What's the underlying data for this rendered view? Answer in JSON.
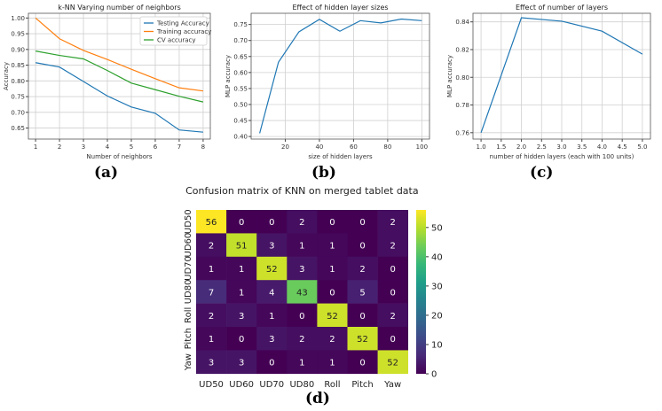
{
  "chart_data": [
    {
      "type": "line",
      "title": "k-NN Varying number of neighbors",
      "xlabel": "Number of neighbors",
      "ylabel": "Accuracy",
      "x": [
        1,
        2,
        3,
        4,
        5,
        6,
        7,
        8
      ],
      "xlim": [
        0.7,
        8.3
      ],
      "ylim": [
        0.615,
        1.015
      ],
      "xticks": [
        1,
        2,
        3,
        4,
        5,
        6,
        7,
        8
      ],
      "yticks": [
        0.65,
        0.7,
        0.75,
        0.8,
        0.85,
        0.9,
        0.95,
        1.0
      ],
      "ytick_fmt": 2,
      "grid": true,
      "legend": "top-right",
      "series": [
        {
          "name": "Testing Accuracy",
          "color": "#1f77b4",
          "values": [
            0.858,
            0.844,
            0.798,
            0.752,
            0.717,
            0.697,
            0.644,
            0.637
          ]
        },
        {
          "name": "Training accuracy",
          "color": "#ff7f0e",
          "values": [
            1.0,
            0.934,
            0.897,
            0.868,
            0.837,
            0.807,
            0.778,
            0.768
          ]
        },
        {
          "name": "CV accuracy",
          "color": "#2ca02c",
          "values": [
            0.895,
            0.881,
            0.87,
            0.833,
            0.793,
            0.772,
            0.751,
            0.733
          ]
        }
      ],
      "panel_label": "(a)"
    },
    {
      "type": "line",
      "title": "Effect of hidden layer sizes",
      "xlabel": "size of hidden layers",
      "ylabel": "MLP accuracy",
      "x": [
        5,
        16,
        28,
        40,
        52,
        64,
        76,
        88,
        100
      ],
      "xlim": [
        0,
        104.5
      ],
      "ylim": [
        0.392,
        0.785
      ],
      "xticks": [
        20,
        40,
        60,
        80,
        100
      ],
      "yticks": [
        0.4,
        0.45,
        0.5,
        0.55,
        0.6,
        0.65,
        0.7,
        0.75
      ],
      "ytick_fmt": 2,
      "xtick_fmt": 0,
      "grid": true,
      "series": [
        {
          "name": "MLP accuracy",
          "color": "#1f77b4",
          "values": [
            0.41,
            0.632,
            0.727,
            0.766,
            0.729,
            0.762,
            0.755,
            0.767,
            0.762
          ]
        }
      ],
      "panel_label": "(b)"
    },
    {
      "type": "line",
      "title": "Effect of number of layers",
      "xlabel": "number of hidden layers (each with 100 units)",
      "ylabel": "MLP accuracy",
      "x": [
        1,
        2,
        3,
        4,
        5
      ],
      "xlim": [
        0.8,
        5.2
      ],
      "ylim": [
        0.7554,
        0.8462
      ],
      "xticks": [
        1.0,
        1.5,
        2.0,
        2.5,
        3.0,
        3.5,
        4.0,
        4.5,
        5.0
      ],
      "yticks": [
        0.76,
        0.78,
        0.8,
        0.82,
        0.84
      ],
      "ytick_fmt": 2,
      "xtick_fmt": 1,
      "grid": true,
      "series": [
        {
          "name": "MLP accuracy",
          "color": "#1f77b4",
          "values": [
            0.76,
            0.843,
            0.8405,
            0.8333,
            0.8167
          ]
        }
      ],
      "panel_label": "(c)"
    },
    {
      "type": "heatmap",
      "title": "Confusion matrix of KNN on merged tablet data",
      "labels": [
        "UD50",
        "UD60",
        "UD70",
        "UD80",
        "Roll",
        "Pitch",
        "Yaw"
      ],
      "matrix": [
        [
          56,
          0,
          0,
          2,
          0,
          0,
          2
        ],
        [
          2,
          51,
          3,
          1,
          1,
          0,
          2
        ],
        [
          1,
          1,
          52,
          3,
          1,
          2,
          0
        ],
        [
          7,
          1,
          4,
          43,
          0,
          5,
          0
        ],
        [
          2,
          3,
          1,
          0,
          52,
          0,
          2
        ],
        [
          1,
          0,
          3,
          2,
          2,
          52,
          0
        ],
        [
          3,
          3,
          0,
          1,
          1,
          0,
          52
        ]
      ],
      "colorbar_ticks": [
        0,
        10,
        20,
        30,
        40,
        50
      ],
      "vmin": 0,
      "vmax": 56,
      "colormap": "viridis",
      "panel_label": "(d)"
    }
  ]
}
